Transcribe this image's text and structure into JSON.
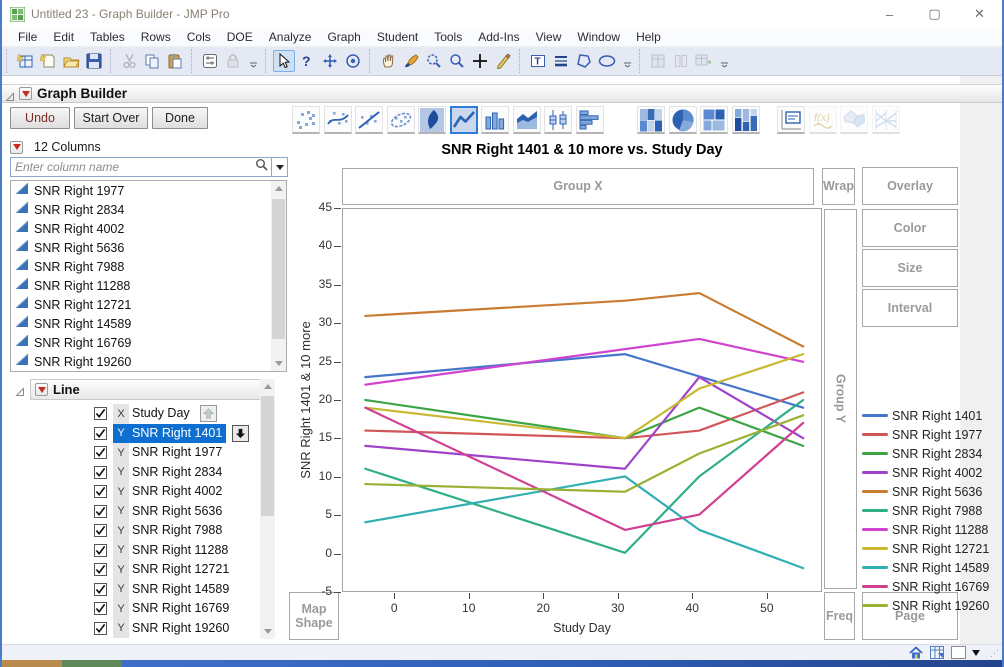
{
  "window": {
    "title": "Untitled 23 - Graph Builder - JMP Pro",
    "controls": [
      "minimize-button",
      "maximize-button",
      "close-button"
    ],
    "control_glyphs": {
      "minimize": "–",
      "maximize": "▢",
      "close": "✕"
    }
  },
  "menu": {
    "items": [
      "File",
      "Edit",
      "Tables",
      "Rows",
      "Cols",
      "DOE",
      "Analyze",
      "Graph",
      "Student",
      "Tools",
      "Add-Ins",
      "View",
      "Window",
      "Help"
    ]
  },
  "toolbar": {
    "groups": [
      {
        "icons": [
          "new-data-table",
          "new-journal",
          "open",
          "save"
        ]
      },
      {
        "icons": [
          "cut",
          "copy",
          "paste"
        ]
      },
      {
        "icons": [
          "preferences",
          "lock",
          "overflow"
        ]
      },
      {
        "icons": [
          "arrow-cursor",
          "help",
          "move",
          "target"
        ]
      },
      {
        "icons": [
          "hand",
          "brush",
          "zoom-lasso",
          "magnifier",
          "crosshair-plus",
          "pencil"
        ]
      },
      {
        "icons": [
          "text-annotation",
          "line-annotation",
          "polygon-annotation",
          "oval-annotation",
          "overflow"
        ]
      },
      {
        "icons": [
          "journal-view",
          "layout-view",
          "add-to-table",
          "overflow"
        ]
      }
    ],
    "selected": "arrow-cursor",
    "disabled": [
      "cut",
      "lock",
      "journal-view",
      "layout-view",
      "add-to-table"
    ]
  },
  "graph_builder": {
    "header_title": "Graph Builder",
    "buttons": {
      "undo": "Undo",
      "start_over": "Start Over",
      "done": "Done"
    },
    "palette": {
      "icons": [
        "points",
        "smoother",
        "line-of-fit",
        "ellipse",
        "contour",
        "line",
        "bar",
        "area",
        "box-plot",
        "histogram",
        "gap",
        "heatmap",
        "pie",
        "treemap",
        "mosaic",
        "gap2",
        "caption-box",
        "formula",
        "map-shape",
        "parallel"
      ],
      "selected": "line",
      "disabled": [
        "formula",
        "map-shape",
        "parallel"
      ]
    },
    "columns_panel": {
      "header": "12 Columns",
      "search_placeholder": "Enter column name",
      "columns": [
        "SNR Right 1977",
        "SNR Right 2834",
        "SNR Right 4002",
        "SNR Right 5636",
        "SNR Right 7988",
        "SNR Right 11288",
        "SNR Right 12721",
        "SNR Right 14589",
        "SNR Right 16769",
        "SNR Right 19260"
      ]
    },
    "line_panel": {
      "header": "Line",
      "variables": [
        {
          "role": "X",
          "name": "Study Day",
          "checked": true,
          "selected": false,
          "arrow": "up"
        },
        {
          "role": "Y",
          "name": "SNR Right 1401",
          "checked": true,
          "selected": true,
          "arrow": "down"
        },
        {
          "role": "Y",
          "name": "SNR Right 1977",
          "checked": true,
          "selected": false,
          "arrow": null
        },
        {
          "role": "Y",
          "name": "SNR Right 2834",
          "checked": true,
          "selected": false,
          "arrow": null
        },
        {
          "role": "Y",
          "name": "SNR Right 4002",
          "checked": true,
          "selected": false,
          "arrow": null
        },
        {
          "role": "Y",
          "name": "SNR Right 5636",
          "checked": true,
          "selected": false,
          "arrow": null
        },
        {
          "role": "Y",
          "name": "SNR Right 7988",
          "checked": true,
          "selected": false,
          "arrow": null
        },
        {
          "role": "Y",
          "name": "SNR Right 11288",
          "checked": true,
          "selected": false,
          "arrow": null
        },
        {
          "role": "Y",
          "name": "SNR Right 12721",
          "checked": true,
          "selected": false,
          "arrow": null
        },
        {
          "role": "Y",
          "name": "SNR Right 14589",
          "checked": true,
          "selected": false,
          "arrow": null
        },
        {
          "role": "Y",
          "name": "SNR Right 16769",
          "checked": true,
          "selected": false,
          "arrow": null
        },
        {
          "role": "Y",
          "name": "SNR Right 19260",
          "checked": true,
          "selected": false,
          "arrow": null
        }
      ]
    }
  },
  "zones": {
    "group_x": "Group X",
    "wrap": "Wrap",
    "overlay": "Overlay",
    "color": "Color",
    "size": "Size",
    "interval": "Interval",
    "group_y": "Group Y",
    "map_shape": "Map Shape",
    "freq": "Freq",
    "page": "Page"
  },
  "chart_data": {
    "type": "line",
    "title": "SNR Right 1401 & 10 more vs. Study Day",
    "xlabel": "Study Day",
    "ylabel": "SNR Right 1401 & 10 more",
    "xlim": [
      -7,
      57.4
    ],
    "ylim": [
      -5,
      45
    ],
    "xticks": [
      0,
      10,
      20,
      30,
      40,
      50
    ],
    "yticks": [
      45,
      40,
      35,
      30,
      25,
      20,
      15,
      10,
      5,
      0,
      -5
    ],
    "grid": false,
    "legend_position": "right",
    "series": [
      {
        "name": "SNR Right 1401",
        "color": "#4576c9",
        "points": [
          [
            -4,
            23
          ],
          [
            31,
            26
          ],
          [
            55,
            19
          ]
        ]
      },
      {
        "name": "SNR Right 1977",
        "color": "#d15659",
        "points": [
          [
            -4,
            16
          ],
          [
            31,
            15
          ],
          [
            41,
            16
          ],
          [
            55,
            21
          ]
        ]
      },
      {
        "name": "SNR Right 2834",
        "color": "#3ba545",
        "points": [
          [
            -4,
            20
          ],
          [
            31,
            15
          ],
          [
            41,
            19
          ],
          [
            55,
            14
          ]
        ]
      },
      {
        "name": "SNR Right 4002",
        "color": "#a042c9",
        "points": [
          [
            -4,
            14
          ],
          [
            31,
            11
          ],
          [
            41,
            23
          ],
          [
            55,
            15
          ]
        ]
      },
      {
        "name": "SNR Right 5636",
        "color": "#c97b33",
        "points": [
          [
            -4,
            31
          ],
          [
            31,
            33
          ],
          [
            41,
            34
          ],
          [
            55,
            27
          ]
        ]
      },
      {
        "name": "SNR Right 7988",
        "color": "#2fae88",
        "points": [
          [
            -4,
            11
          ],
          [
            31,
            0
          ],
          [
            41,
            10
          ],
          [
            55,
            20
          ]
        ]
      },
      {
        "name": "SNR Right 11288",
        "color": "#d043d0",
        "points": [
          [
            -4,
            22
          ],
          [
            41,
            28
          ],
          [
            55,
            25
          ]
        ]
      },
      {
        "name": "SNR Right 12721",
        "color": "#c9b932",
        "points": [
          [
            -4,
            19
          ],
          [
            31,
            15
          ],
          [
            41,
            21.5
          ],
          [
            55,
            26
          ]
        ]
      },
      {
        "name": "SNR Right 14589",
        "color": "#31aeb2",
        "points": [
          [
            -4,
            4
          ],
          [
            31,
            10
          ],
          [
            41,
            3
          ],
          [
            55,
            -2
          ]
        ]
      },
      {
        "name": "SNR Right 16769",
        "color": "#d04090",
        "points": [
          [
            -4,
            19
          ],
          [
            31,
            3
          ],
          [
            41,
            5
          ],
          [
            55,
            17
          ]
        ]
      },
      {
        "name": "SNR Right 19260",
        "color": "#98b234",
        "points": [
          [
            -4,
            9
          ],
          [
            31,
            8
          ],
          [
            41,
            13
          ],
          [
            55,
            18
          ]
        ]
      }
    ]
  },
  "status_bar": {
    "icons": [
      "home-icon",
      "data-table-icon",
      "color-swatch",
      "dropdown-arrow"
    ]
  }
}
